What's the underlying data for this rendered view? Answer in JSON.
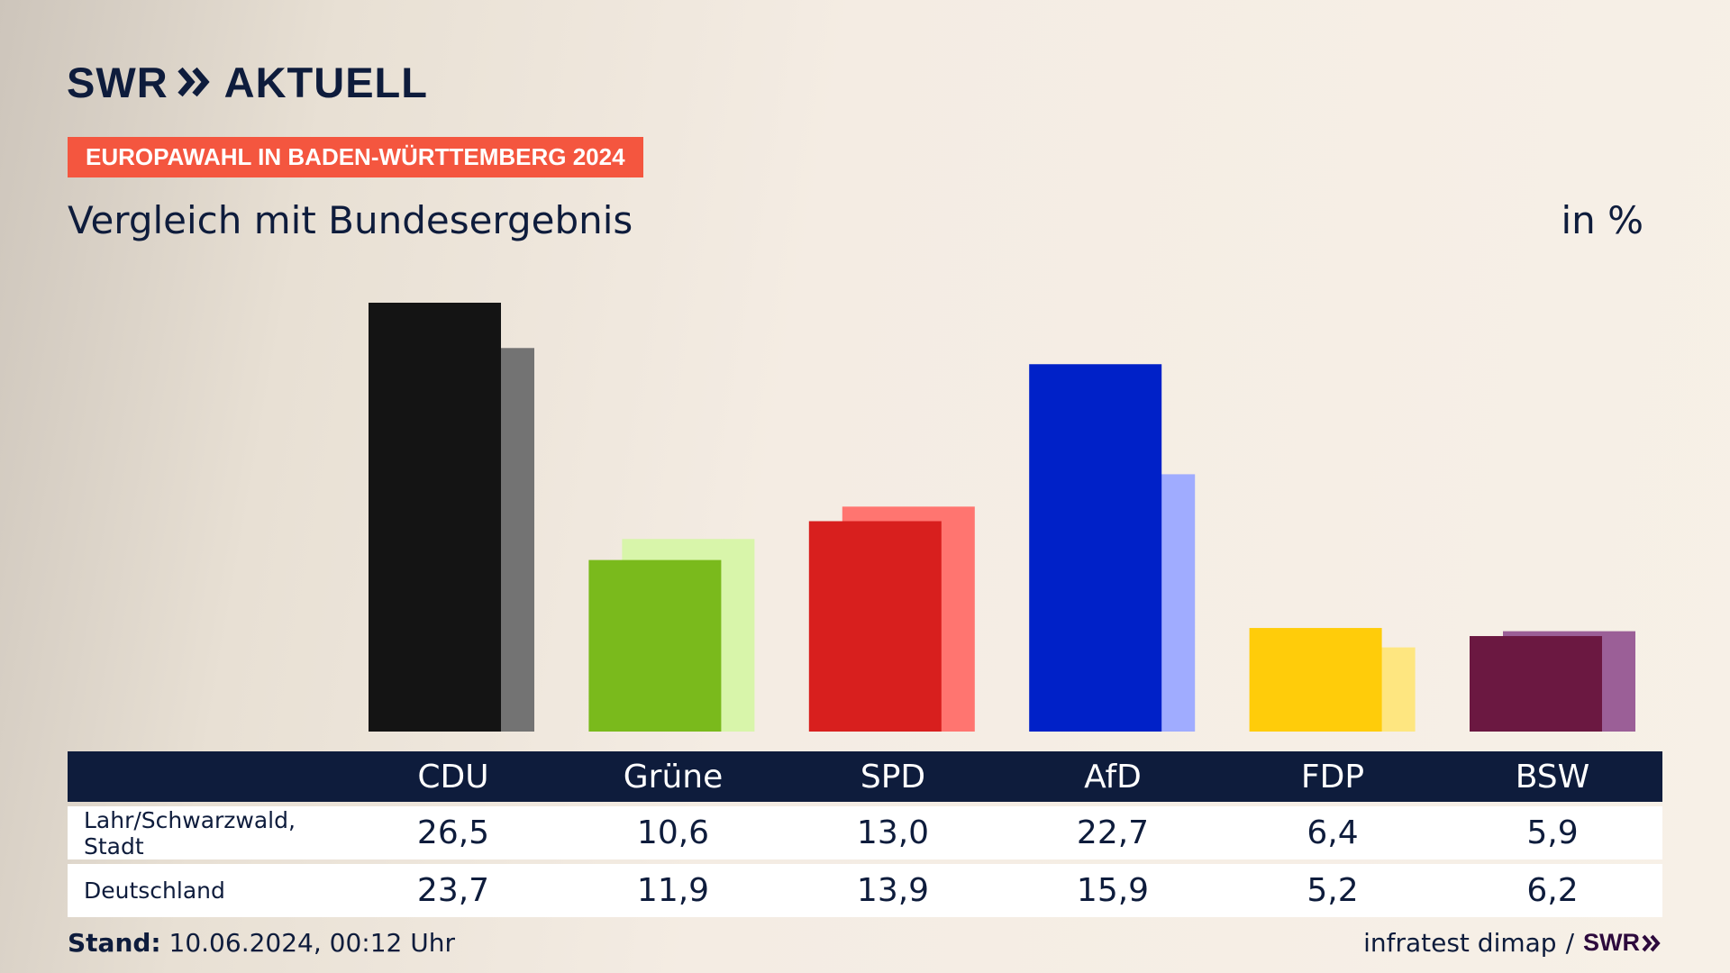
{
  "brand": {
    "name": "SWR",
    "product": "AKTUELL"
  },
  "tag": "EUROPAWAHL IN BADEN-WÜRTTEMBERG 2024",
  "subtitle": "Vergleich mit Bundesergebnis",
  "unit": "in %",
  "colors": {
    "CDU": {
      "local": "#141414",
      "national": "#737373"
    },
    "Grüne": {
      "local": "#7aba1c",
      "national": "#d8f5aa"
    },
    "SPD": {
      "local": "#d81f1e",
      "national": "#ff7570"
    },
    "AfD": {
      "local": "#0021c8",
      "national": "#a0acff"
    },
    "FDP": {
      "local": "#ffcc0a",
      "national": "#fee680"
    },
    "BSW": {
      "local": "#6b1841",
      "national": "#9b5f97"
    }
  },
  "chart_data": {
    "type": "bar",
    "categories": [
      "CDU",
      "Grüne",
      "SPD",
      "AfD",
      "FDP",
      "BSW"
    ],
    "series": [
      {
        "name": "Lahr/Schwarzwald, Stadt",
        "values": [
          26.5,
          10.6,
          13.0,
          22.7,
          6.4,
          5.9
        ]
      },
      {
        "name": "Deutschland",
        "values": [
          23.7,
          11.9,
          13.9,
          15.9,
          5.2,
          6.2
        ]
      }
    ],
    "title": "Vergleich mit Bundesergebnis",
    "ylabel": "in %",
    "ylim": [
      0,
      26.5
    ],
    "grid": false
  },
  "table": {
    "headers": [
      "CDU",
      "Grüne",
      "SPD",
      "AfD",
      "FDP",
      "BSW"
    ],
    "rows": [
      {
        "label": "Lahr/Schwarzwald, Stadt",
        "values": [
          "26,5",
          "10,6",
          "13,0",
          "22,7",
          "6,4",
          "5,9"
        ]
      },
      {
        "label": "Deutschland",
        "values": [
          "23,7",
          "11,9",
          "13,9",
          "15,9",
          "5,2",
          "6,2"
        ]
      }
    ]
  },
  "footer": {
    "stand_label": "Stand:",
    "stand_value": "10.06.2024, 00:12 Uhr",
    "source": "infratest dimap",
    "separator": "/",
    "source_brand": "SWR"
  }
}
